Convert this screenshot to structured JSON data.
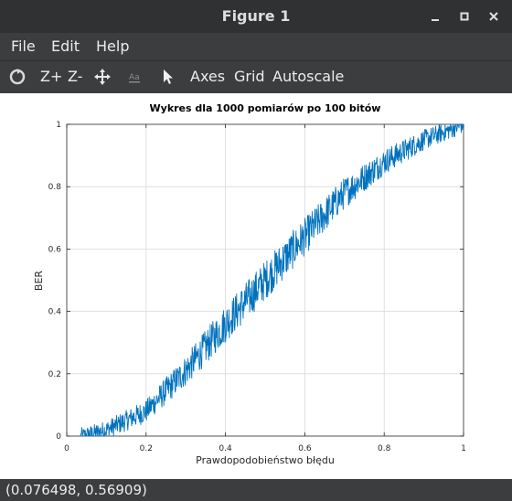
{
  "window": {
    "title": "Figure 1"
  },
  "menu": {
    "file": "File",
    "edit": "Edit",
    "help": "Help"
  },
  "toolbar": {
    "zoom_in": "Z+",
    "zoom_out": "Z-",
    "axes": "Axes",
    "grid": "Grid",
    "autoscale": "Autoscale"
  },
  "status": {
    "coords": "(0.076498, 0.56909)"
  },
  "colors": {
    "line": "#0072bd",
    "grid": "#d9d9d9",
    "chrome": "#3b3d3f",
    "titlebar": "#2f3133"
  },
  "chart_data": {
    "type": "line",
    "title": "Wykres dla 1000 pomiarów po 100 bitów",
    "xlabel": "Prawdopodobieństwo błędu",
    "ylabel": "BER",
    "xlim": [
      0,
      1
    ],
    "ylim": [
      0,
      1
    ],
    "xticks": [
      "0",
      "0.2",
      "0.4",
      "0.6",
      "0.8",
      "1"
    ],
    "yticks": [
      "0",
      "0.2",
      "0.4",
      "0.6",
      "0.8",
      "1"
    ],
    "grid": true,
    "n_points": 1000,
    "x_start": 0.035,
    "x_end": 1,
    "trend_x": [
      0.04,
      0.1,
      0.2,
      0.3,
      0.4,
      0.5,
      0.6,
      0.7,
      0.8,
      0.9,
      1.0
    ],
    "trend_y": [
      0.0,
      0.02,
      0.08,
      0.21,
      0.36,
      0.5,
      0.64,
      0.78,
      0.88,
      0.95,
      1.0
    ],
    "noise_amplitude": 0.055
  }
}
